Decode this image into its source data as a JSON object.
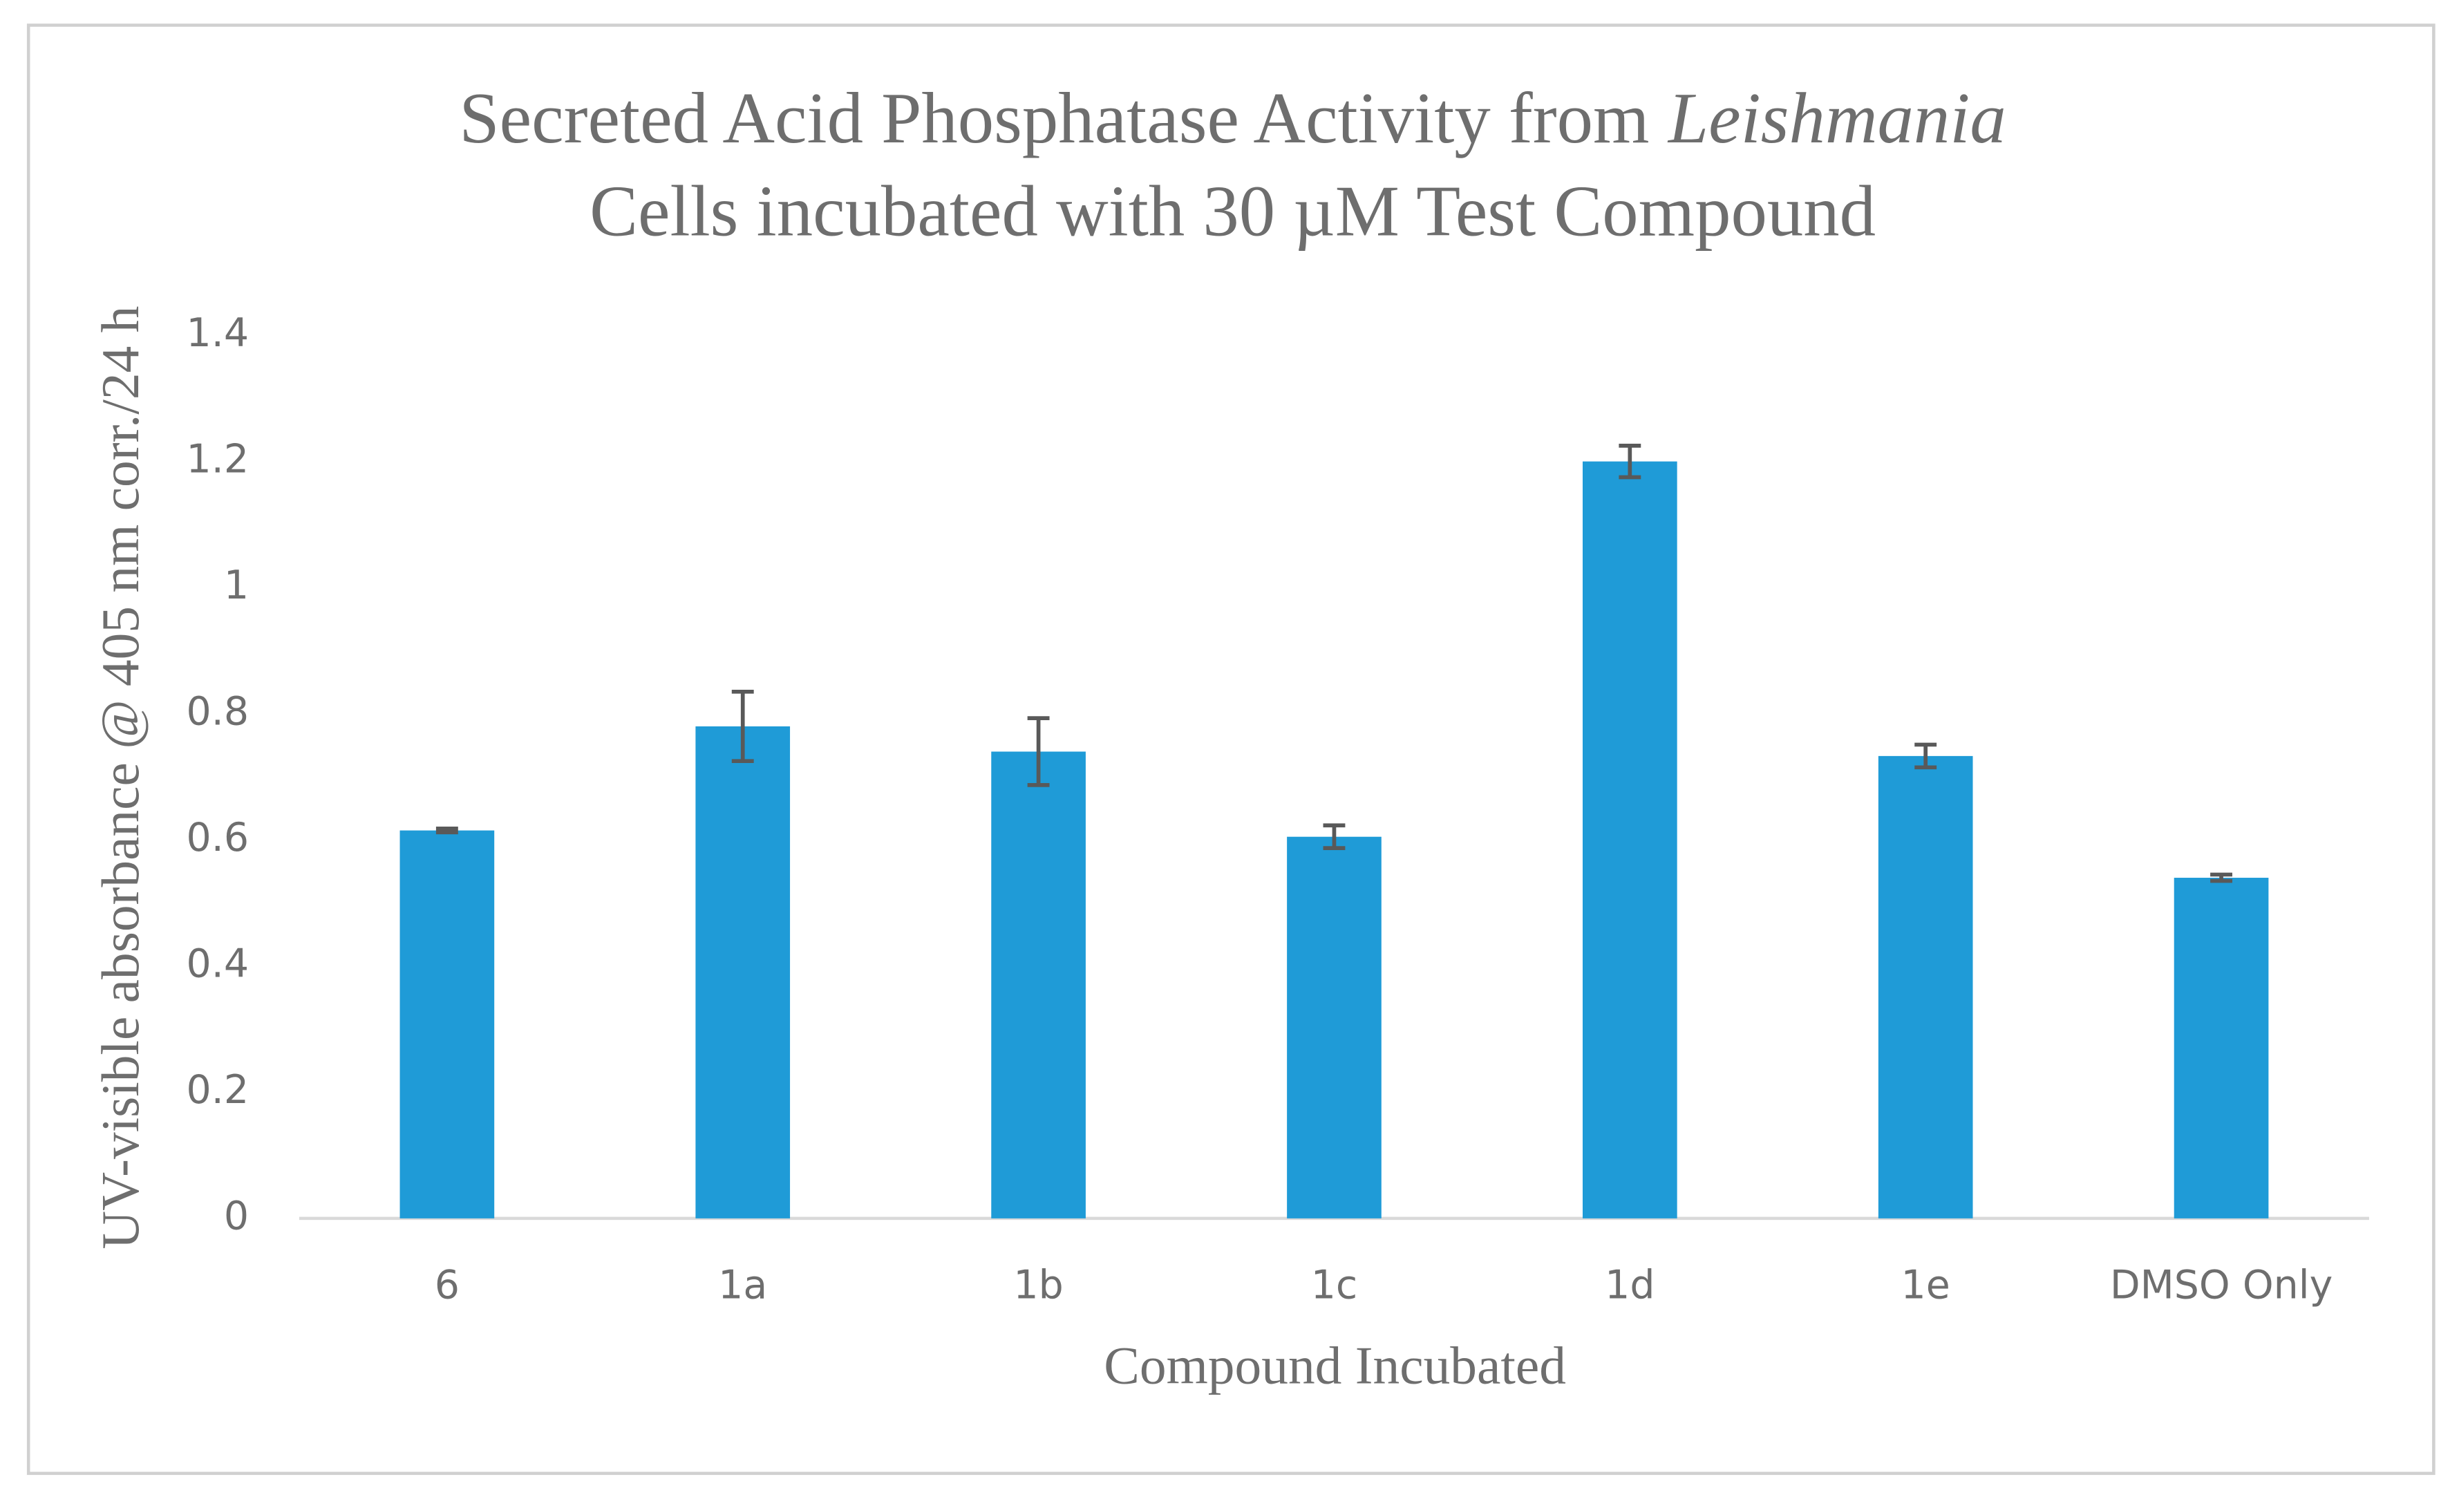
{
  "chart_data": {
    "type": "bar",
    "title": [
      "Secreted Acid Phosphatase Activity from",
      "Leishmania",
      "Cells incubated with 30 µM Test Compound"
    ],
    "title_italic": [
      false,
      true,
      false
    ],
    "x_label": "Compound Incubated",
    "y_label": "UV-visible absorbance @ 405 nm corr./24 h",
    "categories": [
      "6",
      "1a",
      "1b",
      "1c",
      "1d",
      "1e",
      "DMSO Only"
    ],
    "values": [
      0.615,
      0.78,
      0.74,
      0.605,
      1.2,
      0.733,
      0.54
    ],
    "errors": [
      0.003,
      0.055,
      0.053,
      0.018,
      0.025,
      0.018,
      0.005
    ],
    "color": "#1f9bd7",
    "error_color": "#595959",
    "ylim": [
      0,
      1.4
    ],
    "yticks": [
      0,
      0.2,
      0.4,
      0.6,
      0.8,
      1,
      1.2,
      1.4
    ],
    "grid": false
  }
}
